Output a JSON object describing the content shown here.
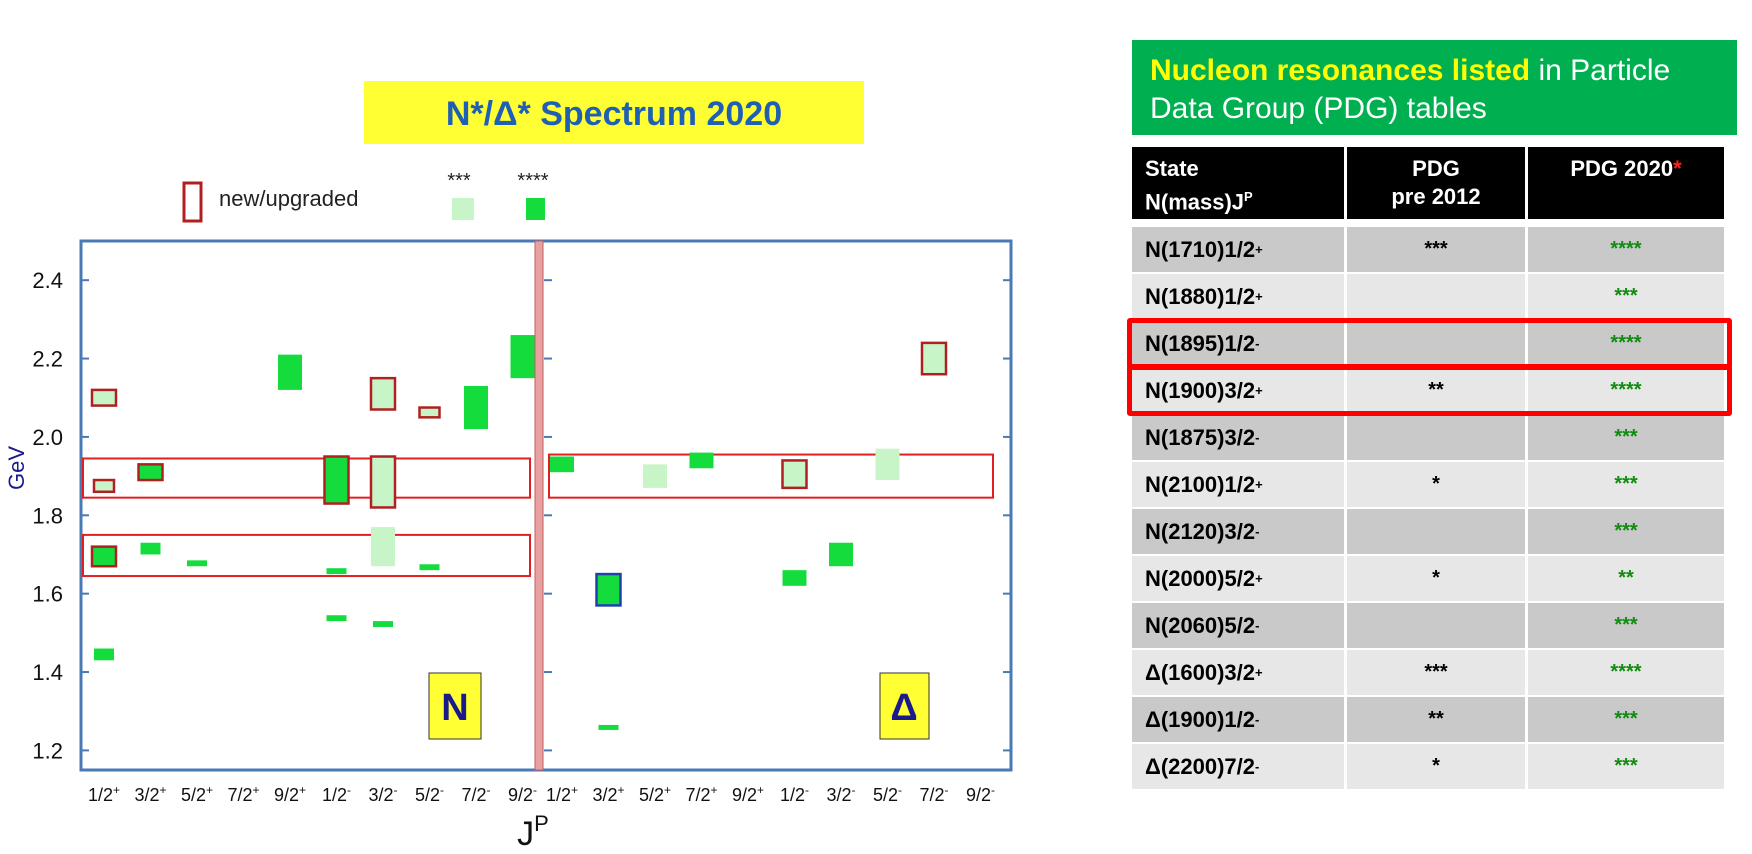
{
  "chart_data": {
    "type": "box-spectrum",
    "title": "N*/Δ* Spectrum 2020",
    "ylabel": "GeV",
    "xlabel": "JP",
    "ylim": [
      1.15,
      2.5
    ],
    "yticks": [
      "1.2",
      "1.4",
      "1.6",
      "1.8",
      "2.0",
      "2.2",
      "2.4"
    ],
    "categories": [
      "1/2+",
      "3/2+",
      "5/2+",
      "7/2+",
      "9/2+",
      "1/2-",
      "3/2-",
      "5/2-",
      "7/2-",
      "9/2-",
      "1/2+",
      "3/2+",
      "5/2+",
      "7/2+",
      "9/2+",
      "1/2-",
      "3/2-",
      "5/2-",
      "7/2-",
      "9/2-"
    ],
    "tick_labels": [
      {
        "base": "1/2",
        "sup": "+"
      },
      {
        "base": "3/2",
        "sup": "+"
      },
      {
        "base": "5/2",
        "sup": "+"
      },
      {
        "base": "7/2",
        "sup": "+"
      },
      {
        "base": "9/2",
        "sup": "+"
      },
      {
        "base": "1/2",
        "sup": "-"
      },
      {
        "base": "3/2",
        "sup": "-"
      },
      {
        "base": "5/2",
        "sup": "-"
      },
      {
        "base": "7/2",
        "sup": "-"
      },
      {
        "base": "9/2",
        "sup": "-"
      },
      {
        "base": "1/2",
        "sup": "+"
      },
      {
        "base": "3/2",
        "sup": "+"
      },
      {
        "base": "5/2",
        "sup": "+"
      },
      {
        "base": "7/2",
        "sup": "+"
      },
      {
        "base": "9/2",
        "sup": "+"
      },
      {
        "base": "1/2",
        "sup": "-"
      },
      {
        "base": "3/2",
        "sup": "-"
      },
      {
        "base": "5/2",
        "sup": "-"
      },
      {
        "base": "7/2",
        "sup": "-"
      },
      {
        "base": "9/2",
        "sup": "-"
      }
    ],
    "legend": {
      "new_label": "new/upgraded",
      "three_star_label": "***",
      "four_star_label": "****"
    },
    "panel_labels": {
      "nucleon": "N",
      "delta": "Δ"
    },
    "colors": {
      "four_star": "#14dc3c",
      "three_star": "#c8f5c8",
      "new_border": "#b02020",
      "highlight_border": "#e02020",
      "axis": "#4a7ab4",
      "title_bg": "#ffff33",
      "title_text": "#1f5fb4",
      "divider": "#e8a0a0"
    },
    "series": [
      {
        "name": "N",
        "resonances": [
          {
            "jp": 0,
            "lo": 1.43,
            "hi": 1.46,
            "rating": 4,
            "new": false
          },
          {
            "jp": 0,
            "lo": 1.67,
            "hi": 1.72,
            "rating": 4,
            "new": true
          },
          {
            "jp": 0,
            "lo": 1.86,
            "hi": 1.89,
            "rating": 3,
            "new": true
          },
          {
            "jp": 0,
            "lo": 2.08,
            "hi": 2.12,
            "rating": 3,
            "new": true
          },
          {
            "jp": 1,
            "lo": 1.7,
            "hi": 1.73,
            "rating": 4,
            "new": false
          },
          {
            "jp": 1,
            "lo": 1.89,
            "hi": 1.93,
            "rating": 4,
            "new": true
          },
          {
            "jp": 2,
            "lo": 1.67,
            "hi": 1.685,
            "rating": 4,
            "new": false
          },
          {
            "jp": 4,
            "lo": 2.12,
            "hi": 2.21,
            "rating": 4,
            "new": false
          },
          {
            "jp": 5,
            "lo": 1.53,
            "hi": 1.545,
            "rating": 4,
            "new": false
          },
          {
            "jp": 5,
            "lo": 1.65,
            "hi": 1.665,
            "rating": 4,
            "new": false
          },
          {
            "jp": 5,
            "lo": 1.83,
            "hi": 1.95,
            "rating": 4,
            "new": true
          },
          {
            "jp": 6,
            "lo": 1.515,
            "hi": 1.53,
            "rating": 4,
            "new": false
          },
          {
            "jp": 6,
            "lo": 1.67,
            "hi": 1.77,
            "rating": 3,
            "new": false
          },
          {
            "jp": 6,
            "lo": 1.82,
            "hi": 1.95,
            "rating": 3,
            "new": true
          },
          {
            "jp": 6,
            "lo": 2.07,
            "hi": 2.15,
            "rating": 3,
            "new": true
          },
          {
            "jp": 7,
            "lo": 1.66,
            "hi": 1.675,
            "rating": 4,
            "new": false
          },
          {
            "jp": 7,
            "lo": 2.05,
            "hi": 2.075,
            "rating": 3,
            "new": true
          },
          {
            "jp": 8,
            "lo": 2.02,
            "hi": 2.13,
            "rating": 4,
            "new": false
          },
          {
            "jp": 9,
            "lo": 2.15,
            "hi": 2.26,
            "rating": 4,
            "new": false
          }
        ]
      },
      {
        "name": "Δ",
        "resonances": [
          {
            "jp": 10,
            "lo": 1.91,
            "hi": 1.95,
            "rating": 4,
            "new": false
          },
          {
            "jp": 11,
            "lo": 1.255,
            "hi": 1.265,
            "rating": 4,
            "new": false
          },
          {
            "jp": 11,
            "lo": 1.57,
            "hi": 1.65,
            "rating": 4,
            "new": true
          },
          {
            "jp": 12,
            "lo": 1.87,
            "hi": 1.93,
            "rating": 3,
            "new": false
          },
          {
            "jp": 13,
            "lo": 1.92,
            "hi": 1.96,
            "rating": 4,
            "new": false
          },
          {
            "jp": 15,
            "lo": 1.62,
            "hi": 1.66,
            "rating": 4,
            "new": false
          },
          {
            "jp": 15,
            "lo": 1.87,
            "hi": 1.94,
            "rating": 3,
            "new": true
          },
          {
            "jp": 16,
            "lo": 1.67,
            "hi": 1.73,
            "rating": 4,
            "new": false
          },
          {
            "jp": 17,
            "lo": 1.89,
            "hi": 1.97,
            "rating": 3,
            "new": false
          },
          {
            "jp": 18,
            "lo": 2.16,
            "hi": 2.24,
            "rating": 3,
            "new": true
          }
        ]
      }
    ],
    "highlight_bands": [
      {
        "jp_from": 0,
        "jp_to": 9,
        "lo": 1.645,
        "hi": 1.75
      },
      {
        "jp_from": 0,
        "jp_to": 9,
        "lo": 1.845,
        "hi": 1.945
      },
      {
        "jp_from": 10,
        "jp_to": 19,
        "lo": 1.845,
        "hi": 1.955
      }
    ]
  },
  "table": {
    "header_highlight": "Nucleon resonances listed",
    "header_rest": " in Particle Data Group (PDG) tables",
    "col1_line1": "State",
    "col1_line2": "N(mass)J",
    "col1_sup": "P",
    "col2_line1": "PDG",
    "col2_line2": "pre 2012",
    "col3": "PDG 2020",
    "col3_mark": "*",
    "rows": [
      {
        "state": "N(1710)1/2",
        "parity": "+",
        "pre2012": "***",
        "pdg2020": "****"
      },
      {
        "state": "N(1880)1/2",
        "parity": "+",
        "pre2012": "",
        "pdg2020": "***"
      },
      {
        "state": "N(1895)1/2",
        "parity": "-",
        "pre2012": "",
        "pdg2020": "****"
      },
      {
        "state": "N(1900)3/2",
        "parity": "+",
        "pre2012": "**",
        "pdg2020": "****"
      },
      {
        "state": "N(1875)3/2",
        "parity": "-",
        "pre2012": "",
        "pdg2020": "***"
      },
      {
        "state": "N(2100)1/2",
        "parity": "+",
        "pre2012": "*",
        "pdg2020": "***"
      },
      {
        "state": "N(2120)3/2",
        "parity": "-",
        "pre2012": "",
        "pdg2020": "***"
      },
      {
        "state": "N(2000)5/2",
        "parity": "+",
        "pre2012": "*",
        "pdg2020": "**"
      },
      {
        "state": "N(2060)5/2",
        "parity": "-",
        "pre2012": "",
        "pdg2020": "***"
      },
      {
        "state": "Δ(1600)3/2",
        "parity": "+",
        "pre2012": "***",
        "pdg2020": "****"
      },
      {
        "state": "Δ(1900)1/2",
        "parity": "-",
        "pre2012": "**",
        "pdg2020": "***"
      },
      {
        "state": "Δ(2200)7/2",
        "parity": "-",
        "pre2012": "*",
        "pdg2020": "***"
      }
    ],
    "highlighted_rows": [
      2,
      3
    ]
  }
}
